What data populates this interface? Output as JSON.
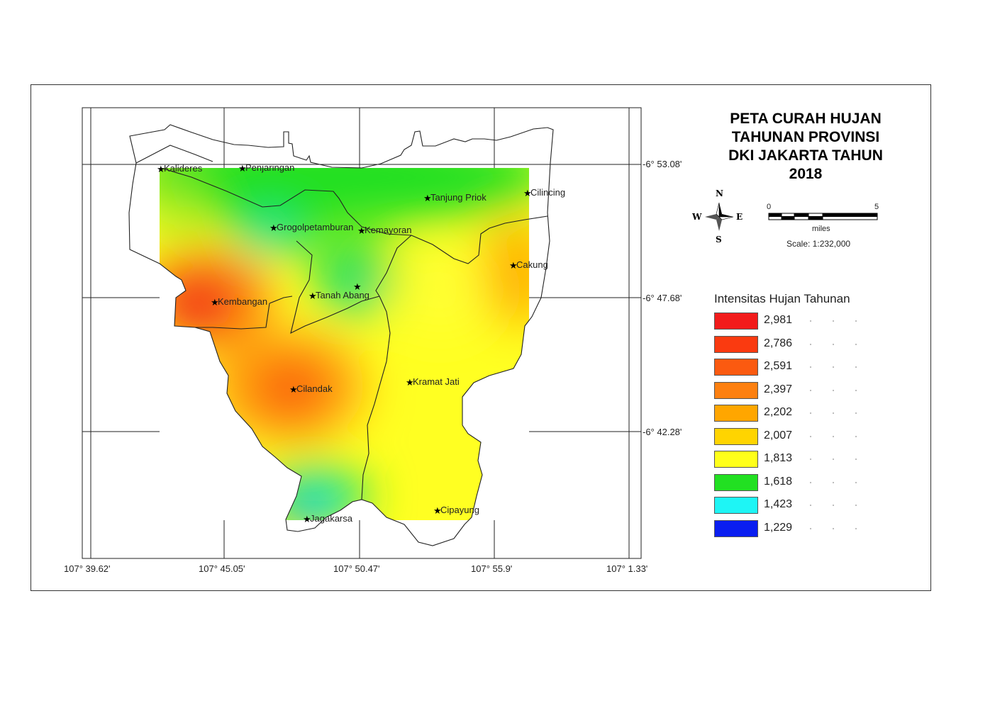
{
  "map": {
    "title_lines": [
      "PETA CURAH HUJAN",
      "TAHUNAN PROVINSI",
      "DKI JAKARTA TAHUN",
      "2018"
    ],
    "grid": {
      "longitude_labels": [
        "107° 39.62'",
        "107° 45.05'",
        "107° 50.47'",
        "107° 55.9'",
        "107° 1.33'"
      ],
      "latitude_labels": [
        "-6° 53.08'",
        "-6° 47.68'",
        "-6° 42.28'"
      ]
    },
    "places": [
      {
        "name": "Kalideres"
      },
      {
        "name": "Penjaringan"
      },
      {
        "name": "Tanjung Priok"
      },
      {
        "name": "Cilincing"
      },
      {
        "name": "Grogolpetamburan"
      },
      {
        "name": "Kemayoran"
      },
      {
        "name": "Cakung"
      },
      {
        "name": "Kembangan"
      },
      {
        "name": "Tanah Abang"
      },
      {
        "name": ""
      },
      {
        "name": "Cilandak"
      },
      {
        "name": "Kramat Jati"
      },
      {
        "name": "Jagakarsa"
      },
      {
        "name": "Cipayung"
      }
    ],
    "compass": {
      "n": "N",
      "s": "S",
      "e": "E",
      "w": "W"
    },
    "scale_bar": {
      "start": "0",
      "end": "5",
      "unit": "miles",
      "caption": "Scale: 1:232,000"
    },
    "legend": {
      "title": "Intensitas Hujan Tahunan",
      "classes": [
        {
          "label": "2,981",
          "color": "#f21b1b"
        },
        {
          "label": "2,786",
          "color": "#fa3a10"
        },
        {
          "label": "2,591",
          "color": "#fb5a10"
        },
        {
          "label": "2,397",
          "color": "#fd8010"
        },
        {
          "label": "2,202",
          "color": "#ffa600"
        },
        {
          "label": "2,007",
          "color": "#ffd400"
        },
        {
          "label": "1,813",
          "color": "#ffff1a"
        },
        {
          "label": "1,618",
          "color": "#22e022"
        },
        {
          "label": "1,423",
          "color": "#1ef5f5"
        },
        {
          "label": "1,229",
          "color": "#0a1ef0"
        }
      ]
    }
  }
}
